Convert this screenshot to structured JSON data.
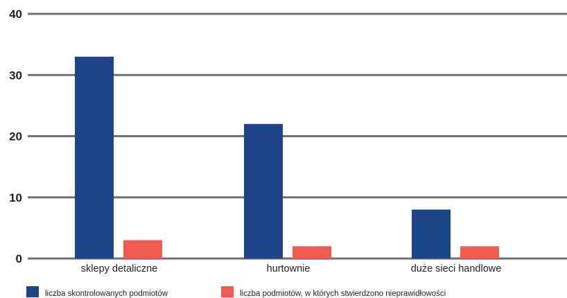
{
  "chart_data": {
    "type": "bar",
    "categories": [
      "sklepy detaliczne",
      "hurtownie",
      "duże sieci handlowe"
    ],
    "series": [
      {
        "name": "liczba skontrolowanych podmiotów",
        "values": [
          33,
          22,
          8
        ],
        "color": "#1d4488"
      },
      {
        "name": "liczba podmiotów, w których stwierdzono nieprawidłowości",
        "values": [
          3,
          2,
          2
        ],
        "color": "#f05a4f"
      }
    ],
    "ylim": [
      0,
      40
    ],
    "yticks": [
      0,
      10,
      20,
      30,
      40
    ],
    "grid": true,
    "grid_color": "#6d6e71",
    "legend_position": "bottom-left"
  }
}
